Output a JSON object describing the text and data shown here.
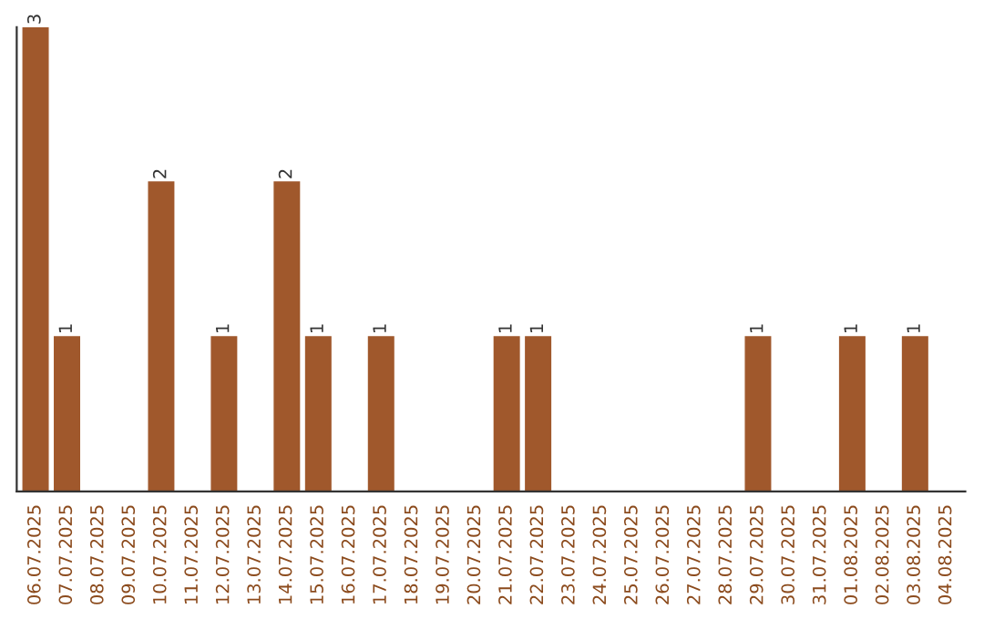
{
  "chart_data": {
    "type": "bar",
    "categories": [
      "06.07.2025",
      "07.07.2025",
      "08.07.2025",
      "09.07.2025",
      "10.07.2025",
      "11.07.2025",
      "12.07.2025",
      "13.07.2025",
      "14.07.2025",
      "15.07.2025",
      "16.07.2025",
      "17.07.2025",
      "18.07.2025",
      "19.07.2025",
      "20.07.2025",
      "21.07.2025",
      "22.07.2025",
      "23.07.2025",
      "24.07.2025",
      "25.07.2025",
      "26.07.2025",
      "27.07.2025",
      "28.07.2025",
      "29.07.2025",
      "30.07.2025",
      "31.07.2025",
      "01.08.2025",
      "02.08.2025",
      "03.08.2025",
      "04.08.2025"
    ],
    "values": [
      3,
      1,
      0,
      0,
      2,
      0,
      1,
      0,
      2,
      1,
      0,
      1,
      0,
      0,
      0,
      1,
      1,
      0,
      0,
      0,
      0,
      0,
      0,
      1,
      0,
      0,
      1,
      0,
      1,
      0
    ],
    "value_labels": [
      "3",
      "1",
      null,
      null,
      "2",
      null,
      "1",
      null,
      "2",
      "1",
      null,
      "1",
      null,
      null,
      null,
      "1",
      "1",
      null,
      null,
      null,
      null,
      null,
      null,
      "1",
      null,
      null,
      "1",
      null,
      "1",
      null
    ],
    "color": "#a0582c",
    "grid": false,
    "legend": false
  }
}
